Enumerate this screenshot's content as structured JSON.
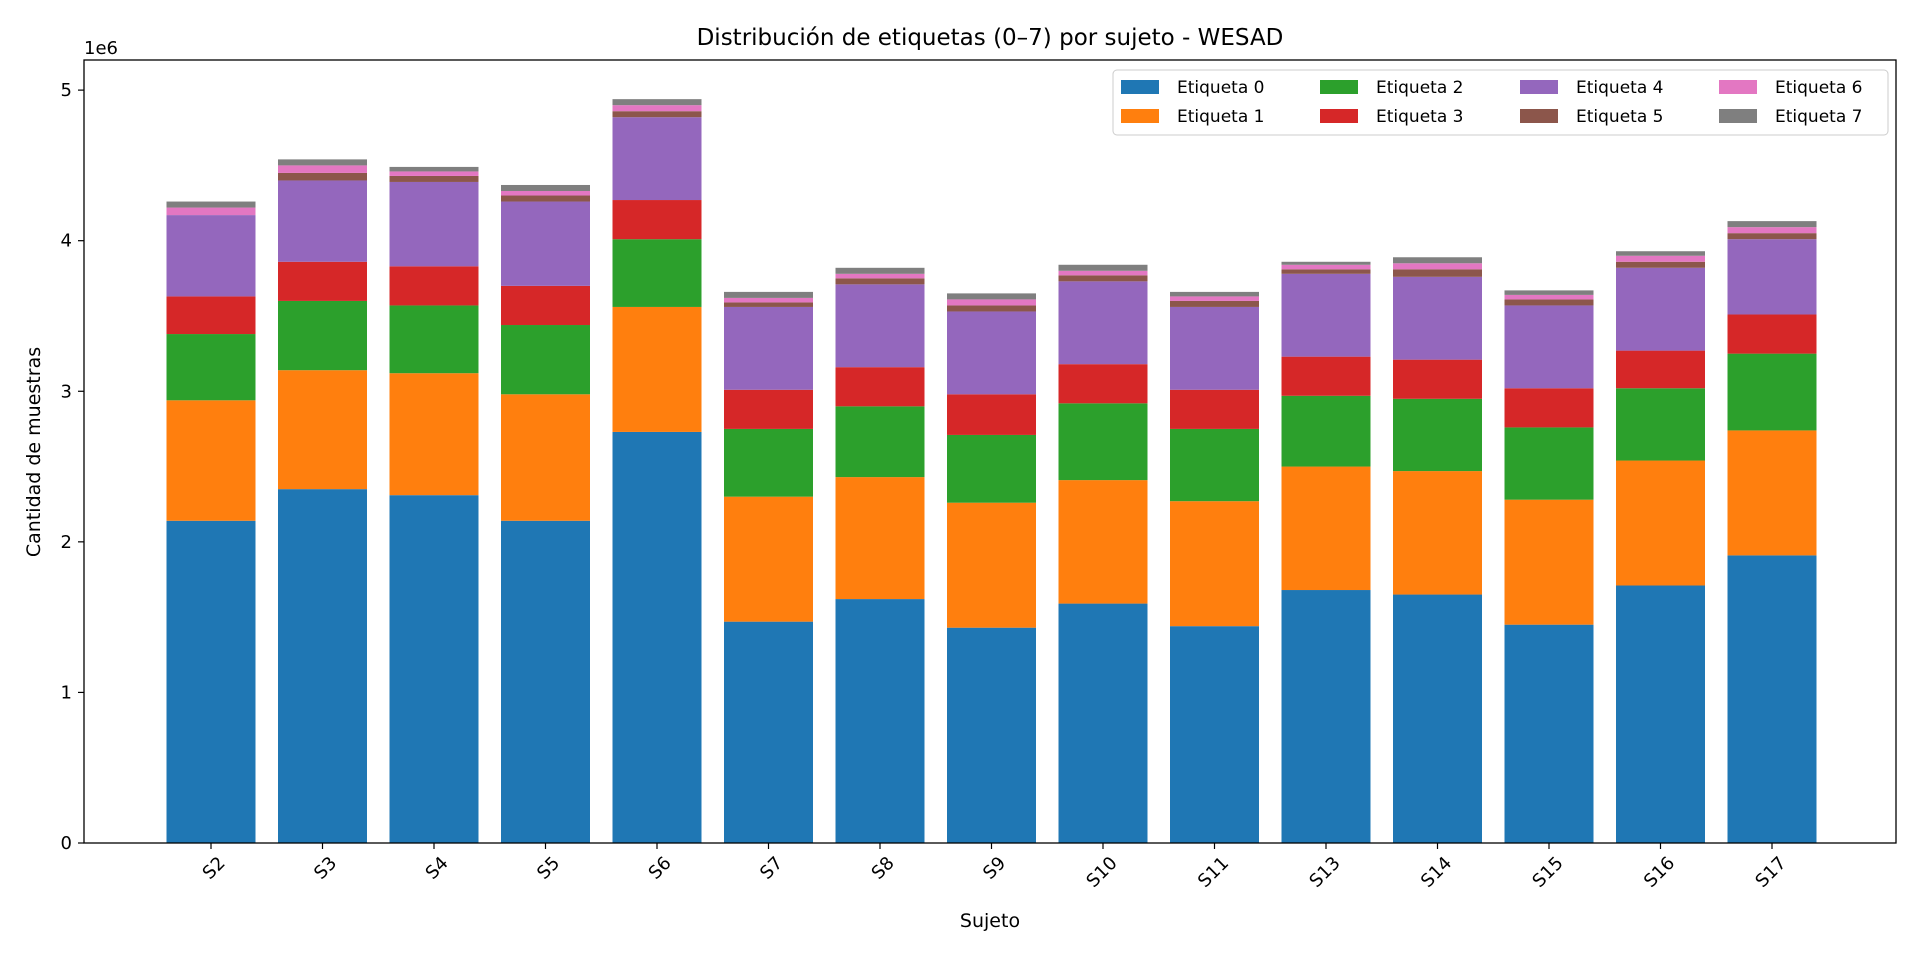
{
  "chart_data": {
    "type": "bar",
    "stacked": true,
    "title": "Distribución de etiquetas (0–7) por sujeto - WESAD",
    "xlabel": "Sujeto",
    "ylabel": "Cantidad de muestras",
    "y_offset_label": "1e6",
    "ylim": [
      0,
      5.2
    ],
    "yticks": [
      0,
      1,
      2,
      3,
      4,
      5
    ],
    "ytick_labels": [
      "0",
      "1",
      "2",
      "3",
      "4",
      "5"
    ],
    "legend_position": "top-right",
    "categories": [
      "S2",
      "S3",
      "S4",
      "S5",
      "S6",
      "S7",
      "S8",
      "S9",
      "S10",
      "S11",
      "S13",
      "S14",
      "S15",
      "S16",
      "S17"
    ],
    "series": [
      {
        "name": "Etiqueta 0",
        "color": "#1f77b4",
        "values": [
          2.14,
          2.35,
          2.31,
          2.14,
          2.73,
          1.47,
          1.62,
          1.43,
          1.59,
          1.44,
          1.68,
          1.65,
          1.45,
          1.71,
          1.91
        ]
      },
      {
        "name": "Etiqueta 1",
        "color": "#ff7f0e",
        "values": [
          0.8,
          0.79,
          0.81,
          0.84,
          0.83,
          0.83,
          0.81,
          0.83,
          0.82,
          0.83,
          0.82,
          0.82,
          0.83,
          0.83,
          0.83
        ]
      },
      {
        "name": "Etiqueta 2",
        "color": "#2ca02c",
        "values": [
          0.44,
          0.46,
          0.45,
          0.46,
          0.45,
          0.45,
          0.47,
          0.45,
          0.51,
          0.48,
          0.47,
          0.48,
          0.48,
          0.48,
          0.51
        ]
      },
      {
        "name": "Etiqueta 3",
        "color": "#d62728",
        "values": [
          0.25,
          0.26,
          0.26,
          0.26,
          0.26,
          0.26,
          0.26,
          0.27,
          0.26,
          0.26,
          0.26,
          0.26,
          0.26,
          0.25,
          0.26
        ]
      },
      {
        "name": "Etiqueta 4",
        "color": "#9467bd",
        "values": [
          0.54,
          0.54,
          0.56,
          0.56,
          0.55,
          0.55,
          0.55,
          0.55,
          0.55,
          0.55,
          0.55,
          0.55,
          0.55,
          0.55,
          0.5
        ]
      },
      {
        "name": "Etiqueta 5",
        "color": "#8c564b",
        "values": [
          0.0,
          0.05,
          0.04,
          0.04,
          0.04,
          0.03,
          0.04,
          0.04,
          0.04,
          0.04,
          0.03,
          0.05,
          0.04,
          0.04,
          0.04
        ]
      },
      {
        "name": "Etiqueta 6",
        "color": "#e377c2",
        "values": [
          0.05,
          0.05,
          0.03,
          0.03,
          0.04,
          0.03,
          0.03,
          0.04,
          0.03,
          0.03,
          0.03,
          0.04,
          0.03,
          0.04,
          0.04
        ]
      },
      {
        "name": "Etiqueta 7",
        "color": "#7f7f7f",
        "values": [
          0.04,
          0.04,
          0.03,
          0.04,
          0.04,
          0.04,
          0.04,
          0.04,
          0.04,
          0.03,
          0.02,
          0.04,
          0.03,
          0.03,
          0.04
        ]
      }
    ]
  }
}
